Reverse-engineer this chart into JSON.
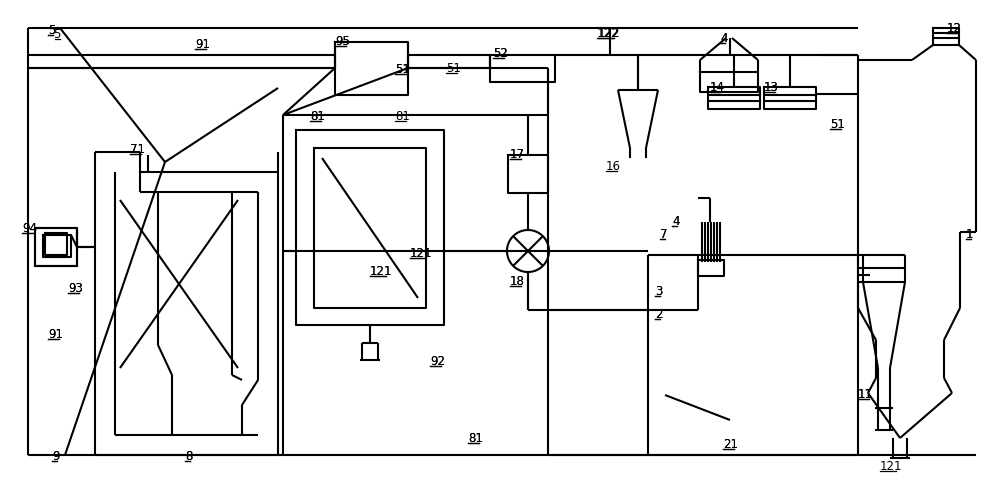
{
  "bg_color": "#ffffff",
  "line_color": "#000000",
  "line_width": 1.5,
  "figsize": [
    10.0,
    4.9
  ],
  "dpi": 100
}
